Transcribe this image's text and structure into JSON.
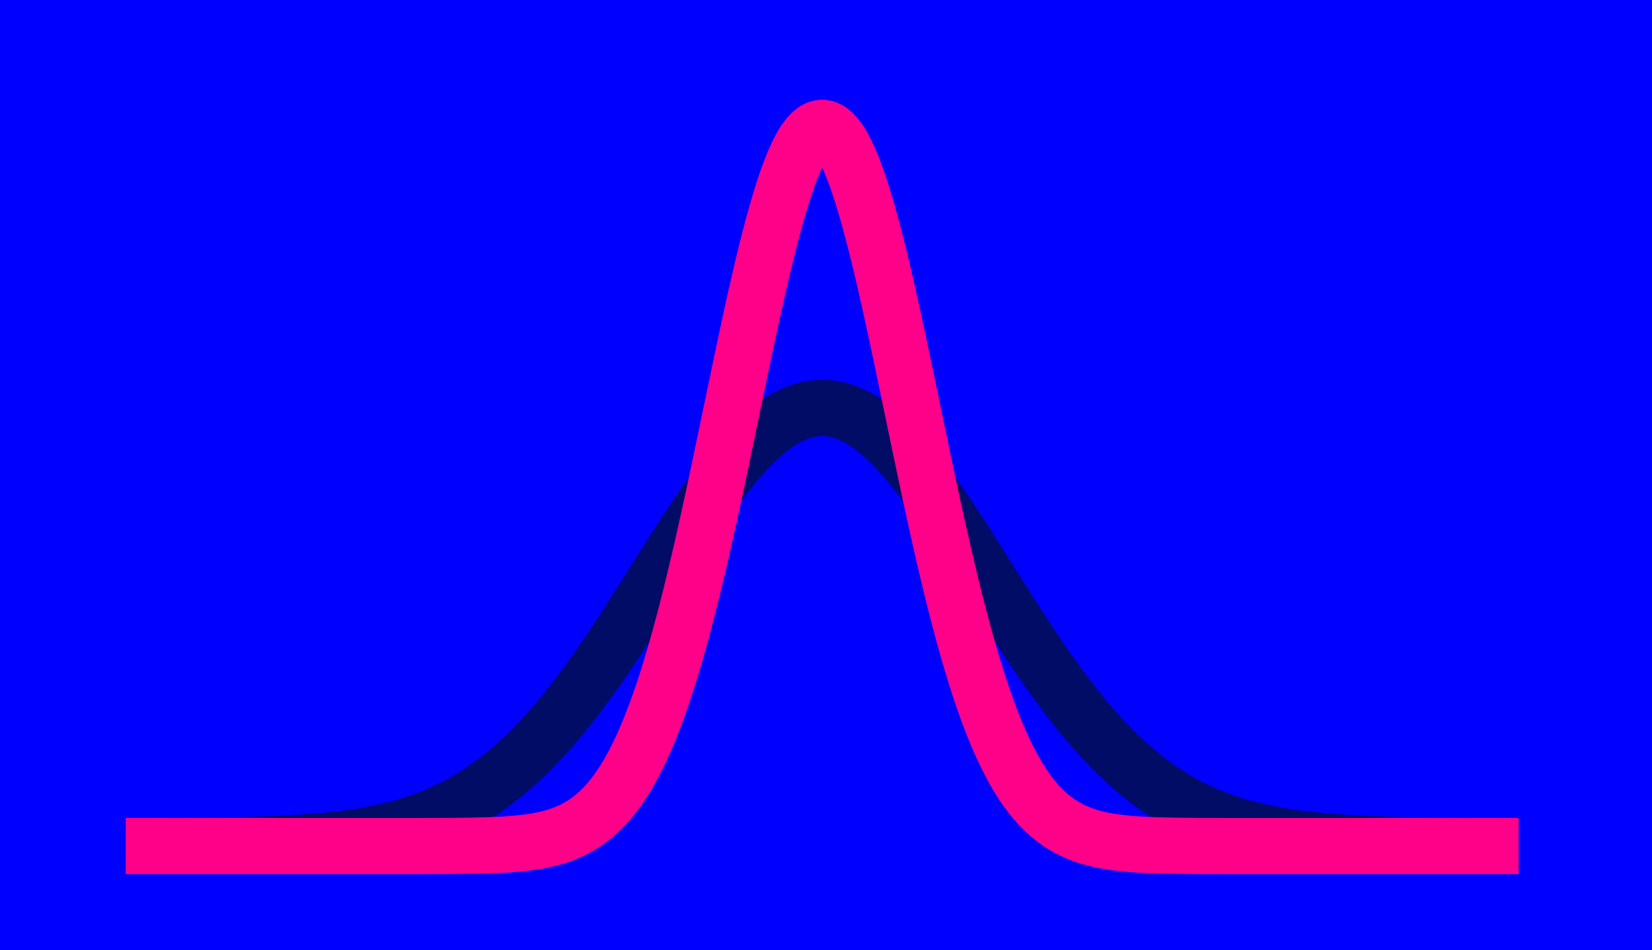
{
  "colors": {
    "background": "#0000FF",
    "wide_curve": "#000C66",
    "narrow_curve": "#FF0088"
  },
  "chart_data": {
    "type": "line",
    "title": "",
    "xlabel": "",
    "ylabel": "",
    "grid": false,
    "legend": "none",
    "xlim": [
      -5,
      5
    ],
    "ylim": [
      0,
      1
    ],
    "series": [
      {
        "mean": 0,
        "sigma": 1.2,
        "peak": 0.61,
        "color": "#000C66"
      },
      {
        "mean": 0,
        "sigma": 0.65,
        "peak": 1.0,
        "color": "#FF0088"
      }
    ]
  }
}
